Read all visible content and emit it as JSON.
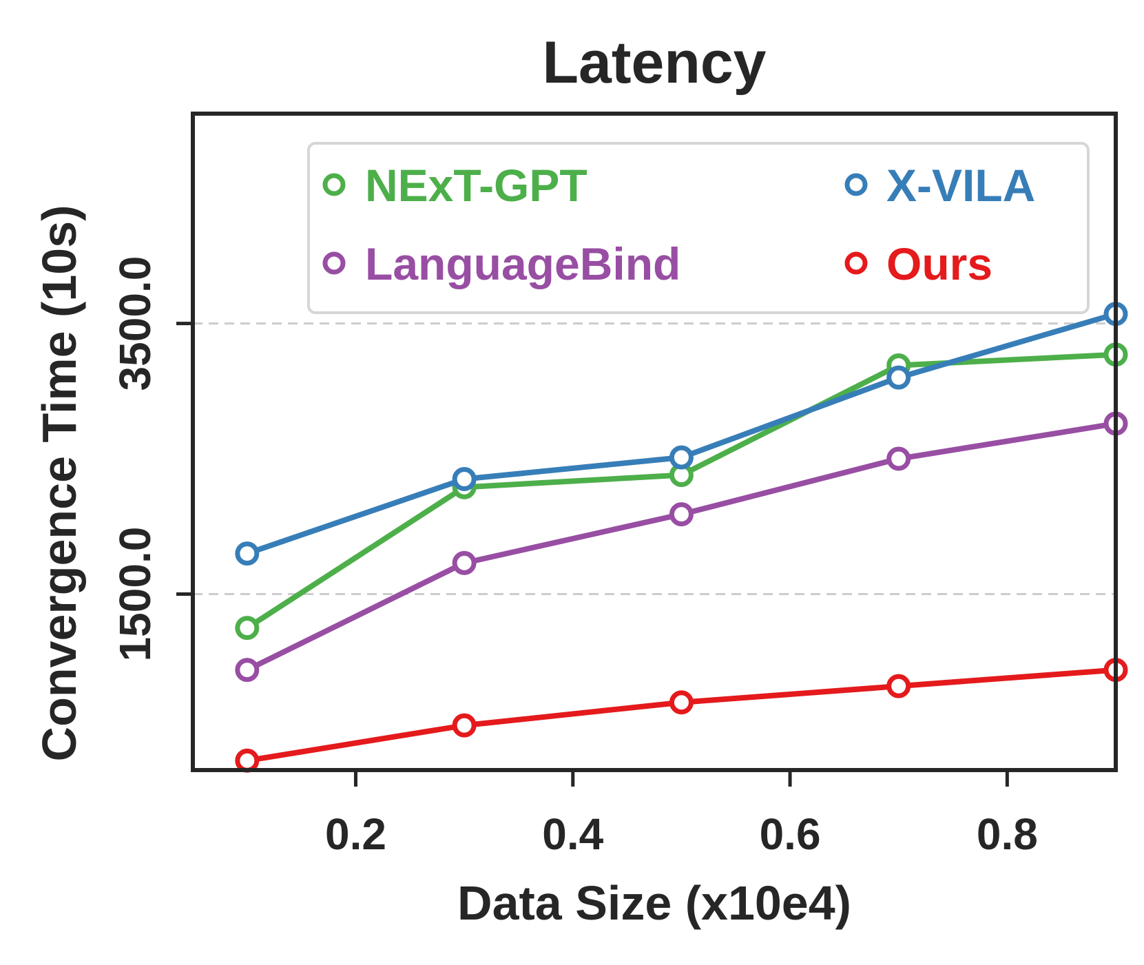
{
  "chart_data": {
    "type": "line",
    "title": "Latency",
    "xlabel": "Data Size (x10e4)",
    "ylabel": "Convergence Time (10s)",
    "xlim": [
      0.05,
      0.9
    ],
    "ylim": [
      200,
      5050
    ],
    "xticks": [
      {
        "value": 0.2,
        "label": "0.2"
      },
      {
        "value": 0.4,
        "label": "0.4"
      },
      {
        "value": 0.6,
        "label": "0.6"
      },
      {
        "value": 0.8,
        "label": "0.8"
      }
    ],
    "yticks": [
      {
        "value": 1500,
        "label": "1500.0"
      },
      {
        "value": 3500,
        "label": "3500.0"
      }
    ],
    "grid": "horizontal-dashed",
    "legend_position": "top",
    "x": [
      0.1,
      0.3,
      0.5,
      0.7,
      0.9
    ],
    "series": [
      {
        "name": "NExT-GPT",
        "color": "#4daf4a",
        "values": [
          1250,
          2290,
          2380,
          3190,
          3270
        ]
      },
      {
        "name": "LanguageBind",
        "color": "#984ea3",
        "values": [
          940,
          1730,
          2090,
          2500,
          2760
        ]
      },
      {
        "name": "X-VILA",
        "color": "#377eb8",
        "values": [
          1800,
          2350,
          2510,
          3100,
          3570
        ]
      },
      {
        "name": "Ours",
        "color": "#e41a1c",
        "values": [
          270,
          530,
          700,
          820,
          940
        ]
      }
    ]
  }
}
